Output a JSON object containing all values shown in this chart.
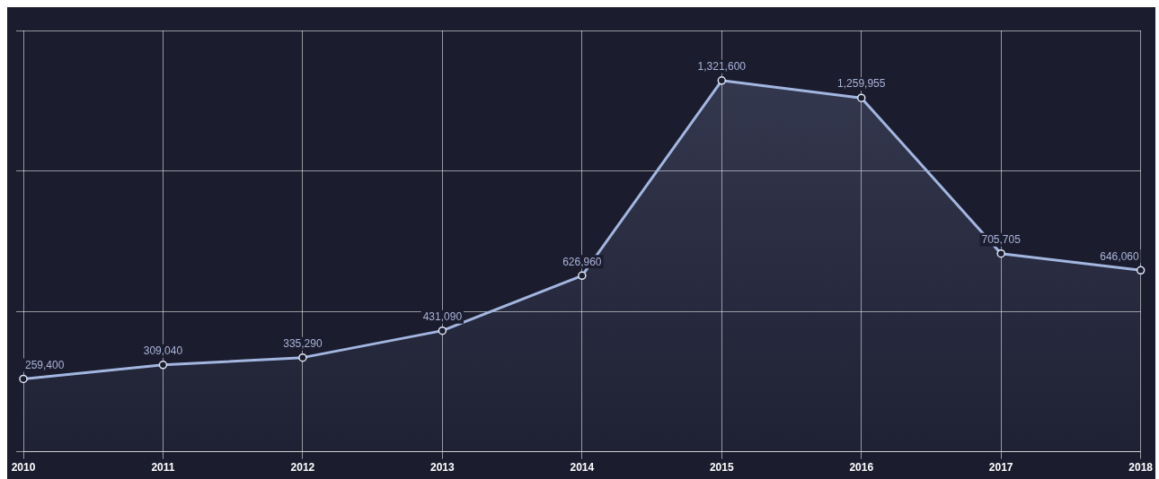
{
  "chart_data": {
    "type": "area",
    "categories": [
      "2010",
      "2011",
      "2012",
      "2013",
      "2014",
      "2015",
      "2016",
      "2017",
      "2018"
    ],
    "series": [
      {
        "color": "#a3b6e0",
        "values": [
          259400,
          309040,
          335290,
          431090,
          626960,
          1321600,
          1259955,
          705705,
          646060
        ],
        "value_labels": [
          "259,400",
          "309,040",
          "335,290",
          "431,090",
          "626,960",
          "1,321,600",
          "1,259,955",
          "705,705",
          "646,060"
        ]
      }
    ],
    "grid": true,
    "tick_labels": "x",
    "marker": "circle",
    "line_style": "solid"
  }
}
